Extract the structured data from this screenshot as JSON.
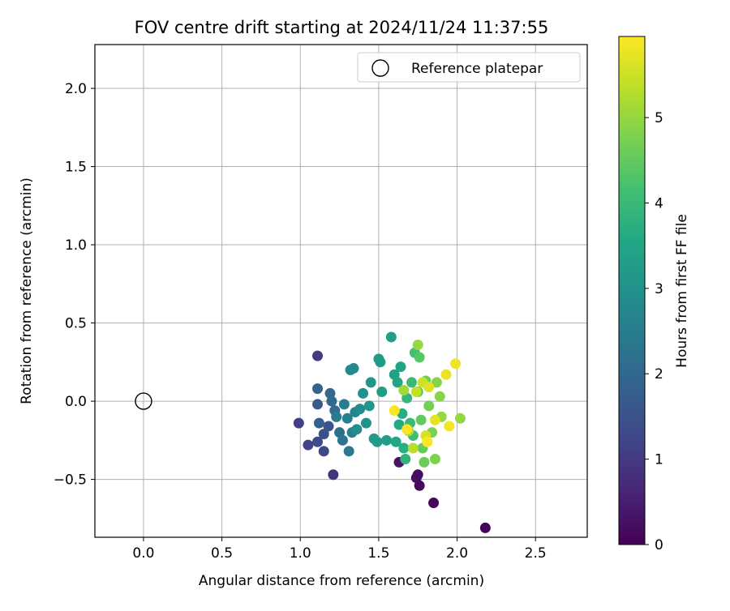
{
  "chart_data": {
    "type": "scatter",
    "title": "FOV centre drift starting at 2024/11/24 11:37:55",
    "xlabel": "Angular distance from reference (arcmin)",
    "ylabel": "Rotation from reference (arcmin)",
    "xlim": [
      -0.31,
      2.83
    ],
    "ylim": [
      -0.87,
      2.28
    ],
    "x_ticks": [
      0.0,
      0.5,
      1.0,
      1.5,
      2.0,
      2.5
    ],
    "x_tick_labels": [
      "0.0",
      "0.5",
      "1.0",
      "1.5",
      "2.0",
      "2.5"
    ],
    "y_ticks": [
      -0.5,
      0.0,
      0.5,
      1.0,
      1.5,
      2.0
    ],
    "y_tick_labels": [
      "−0.5",
      "0.0",
      "0.5",
      "1.0",
      "1.5",
      "2.0"
    ],
    "grid": true,
    "legend": {
      "placement": "top-right",
      "entries": [
        {
          "label": "Reference platepar",
          "marker": "open-circle"
        }
      ]
    },
    "reference_point": {
      "x": 0.0,
      "y": 0.0
    },
    "colorbar": {
      "label": "Hours from first FF file",
      "colormap": "viridis",
      "range": [
        0,
        5.95
      ],
      "ticks": [
        0,
        1,
        2,
        3,
        4,
        5
      ],
      "tick_labels": [
        "0",
        "1",
        "2",
        "3",
        "4",
        "5"
      ]
    },
    "points": [
      {
        "x": 2.18,
        "y": -0.81,
        "c": 0.05
      },
      {
        "x": 1.85,
        "y": -0.65,
        "c": 0.1
      },
      {
        "x": 1.76,
        "y": -0.54,
        "c": 0.15
      },
      {
        "x": 1.75,
        "y": -0.47,
        "c": 0.2
      },
      {
        "x": 1.74,
        "y": -0.49,
        "c": 0.25
      },
      {
        "x": 1.63,
        "y": -0.39,
        "c": 0.3
      },
      {
        "x": 1.21,
        "y": -0.47,
        "c": 0.9
      },
      {
        "x": 1.11,
        "y": 0.29,
        "c": 1.0
      },
      {
        "x": 0.99,
        "y": -0.14,
        "c": 1.1
      },
      {
        "x": 1.05,
        "y": -0.28,
        "c": 1.2
      },
      {
        "x": 1.15,
        "y": -0.32,
        "c": 1.3
      },
      {
        "x": 1.11,
        "y": -0.26,
        "c": 1.35
      },
      {
        "x": 1.15,
        "y": -0.21,
        "c": 1.4
      },
      {
        "x": 1.18,
        "y": -0.16,
        "c": 1.5
      },
      {
        "x": 1.11,
        "y": -0.02,
        "c": 1.7
      },
      {
        "x": 1.12,
        "y": -0.14,
        "c": 1.8
      },
      {
        "x": 1.11,
        "y": 0.08,
        "c": 1.9
      },
      {
        "x": 1.19,
        "y": 0.05,
        "c": 2.0
      },
      {
        "x": 1.2,
        "y": 0.0,
        "c": 2.0
      },
      {
        "x": 1.22,
        "y": -0.06,
        "c": 2.1
      },
      {
        "x": 1.25,
        "y": -0.2,
        "c": 2.2
      },
      {
        "x": 1.27,
        "y": -0.25,
        "c": 2.3
      },
      {
        "x": 1.31,
        "y": -0.32,
        "c": 2.4
      },
      {
        "x": 1.23,
        "y": -0.1,
        "c": 2.4
      },
      {
        "x": 1.28,
        "y": -0.02,
        "c": 2.5
      },
      {
        "x": 1.3,
        "y": -0.11,
        "c": 2.6
      },
      {
        "x": 1.33,
        "y": -0.2,
        "c": 2.6
      },
      {
        "x": 1.35,
        "y": -0.07,
        "c": 2.7
      },
      {
        "x": 1.32,
        "y": 0.2,
        "c": 2.8
      },
      {
        "x": 1.34,
        "y": 0.21,
        "c": 2.8
      },
      {
        "x": 1.36,
        "y": -0.18,
        "c": 2.9
      },
      {
        "x": 1.38,
        "y": -0.05,
        "c": 2.9
      },
      {
        "x": 1.4,
        "y": 0.05,
        "c": 3.0
      },
      {
        "x": 1.42,
        "y": -0.14,
        "c": 3.0
      },
      {
        "x": 1.44,
        "y": -0.03,
        "c": 3.1
      },
      {
        "x": 1.45,
        "y": 0.12,
        "c": 3.1
      },
      {
        "x": 1.47,
        "y": -0.24,
        "c": 3.15
      },
      {
        "x": 1.49,
        "y": -0.26,
        "c": 3.2
      },
      {
        "x": 1.5,
        "y": 0.27,
        "c": 3.2
      },
      {
        "x": 1.51,
        "y": 0.25,
        "c": 3.25
      },
      {
        "x": 1.52,
        "y": 0.06,
        "c": 3.3
      },
      {
        "x": 1.55,
        "y": -0.25,
        "c": 3.3
      },
      {
        "x": 1.58,
        "y": 0.41,
        "c": 3.35
      },
      {
        "x": 1.6,
        "y": 0.17,
        "c": 3.4
      },
      {
        "x": 1.62,
        "y": 0.12,
        "c": 3.5
      },
      {
        "x": 1.64,
        "y": 0.22,
        "c": 3.5
      },
      {
        "x": 1.61,
        "y": -0.26,
        "c": 3.55
      },
      {
        "x": 1.63,
        "y": -0.15,
        "c": 3.6
      },
      {
        "x": 1.65,
        "y": -0.08,
        "c": 3.7
      },
      {
        "x": 1.66,
        "y": -0.3,
        "c": 3.75
      },
      {
        "x": 1.67,
        "y": -0.37,
        "c": 3.8
      },
      {
        "x": 1.68,
        "y": 0.02,
        "c": 3.9
      },
      {
        "x": 1.7,
        "y": -0.14,
        "c": 4.0
      },
      {
        "x": 1.71,
        "y": 0.12,
        "c": 4.0
      },
      {
        "x": 1.72,
        "y": -0.22,
        "c": 4.1
      },
      {
        "x": 1.73,
        "y": 0.31,
        "c": 4.2
      },
      {
        "x": 1.75,
        "y": 0.06,
        "c": 4.3
      },
      {
        "x": 1.76,
        "y": 0.28,
        "c": 4.4
      },
      {
        "x": 1.77,
        "y": -0.12,
        "c": 4.5
      },
      {
        "x": 1.78,
        "y": -0.3,
        "c": 4.55
      },
      {
        "x": 1.79,
        "y": -0.39,
        "c": 4.6
      },
      {
        "x": 1.8,
        "y": 0.13,
        "c": 4.6
      },
      {
        "x": 1.82,
        "y": -0.03,
        "c": 4.7
      },
      {
        "x": 1.84,
        "y": -0.2,
        "c": 4.75
      },
      {
        "x": 1.86,
        "y": -0.37,
        "c": 4.8
      },
      {
        "x": 1.87,
        "y": 0.12,
        "c": 4.85
      },
      {
        "x": 1.89,
        "y": 0.03,
        "c": 4.9
      },
      {
        "x": 1.9,
        "y": -0.1,
        "c": 5.0
      },
      {
        "x": 1.75,
        "y": 0.36,
        "c": 5.0
      },
      {
        "x": 2.02,
        "y": -0.11,
        "c": 5.0
      },
      {
        "x": 1.66,
        "y": 0.07,
        "c": 5.1
      },
      {
        "x": 1.69,
        "y": -0.19,
        "c": 5.2
      },
      {
        "x": 1.72,
        "y": -0.3,
        "c": 5.3
      },
      {
        "x": 1.74,
        "y": 0.06,
        "c": 5.4
      },
      {
        "x": 1.78,
        "y": 0.12,
        "c": 5.5
      },
      {
        "x": 1.8,
        "y": -0.22,
        "c": 5.6
      },
      {
        "x": 1.82,
        "y": 0.09,
        "c": 5.65
      },
      {
        "x": 1.86,
        "y": -0.12,
        "c": 5.7
      },
      {
        "x": 1.93,
        "y": 0.17,
        "c": 5.75
      },
      {
        "x": 1.99,
        "y": 0.24,
        "c": 5.8
      },
      {
        "x": 1.95,
        "y": -0.16,
        "c": 5.85
      },
      {
        "x": 1.6,
        "y": -0.06,
        "c": 5.9
      },
      {
        "x": 1.68,
        "y": -0.18,
        "c": 5.9
      },
      {
        "x": 1.81,
        "y": -0.26,
        "c": 5.95
      }
    ]
  }
}
